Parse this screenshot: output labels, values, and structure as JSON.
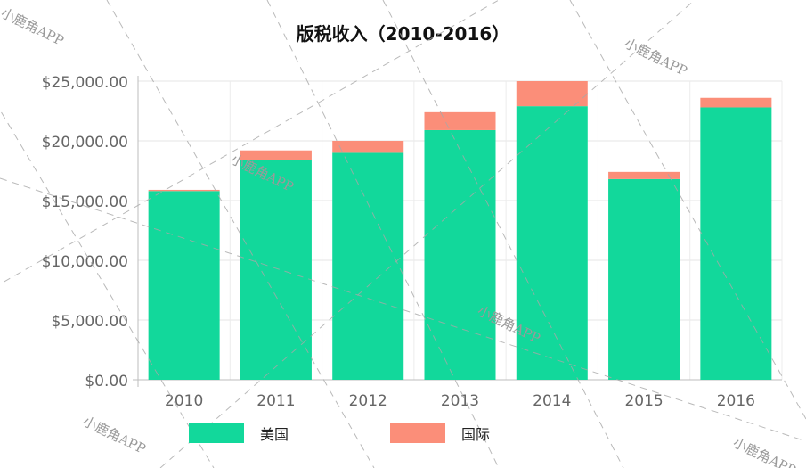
{
  "chart_data": {
    "type": "bar",
    "stacked": true,
    "title": "版税收入（2010-2016）",
    "categories": [
      "2010",
      "2011",
      "2012",
      "2013",
      "2014",
      "2015",
      "2016"
    ],
    "series": [
      {
        "name": "美国",
        "color": "#12d89b",
        "values": [
          15800,
          18400,
          19000,
          20900,
          22900,
          16800,
          22800
        ]
      },
      {
        "name": "国际",
        "color": "#fb8e79",
        "values": [
          100,
          800,
          1000,
          1500,
          2100,
          600,
          800
        ]
      }
    ],
    "yticks": [
      "$0.00",
      "$5,000.00",
      "$10,000.00",
      "$15,000.00",
      "$20,000.00",
      "$25,000.00"
    ],
    "ylim": [
      0,
      25000
    ],
    "grid": true,
    "legend_position": "bottom"
  },
  "watermark": {
    "text": "小鹿角APP"
  }
}
